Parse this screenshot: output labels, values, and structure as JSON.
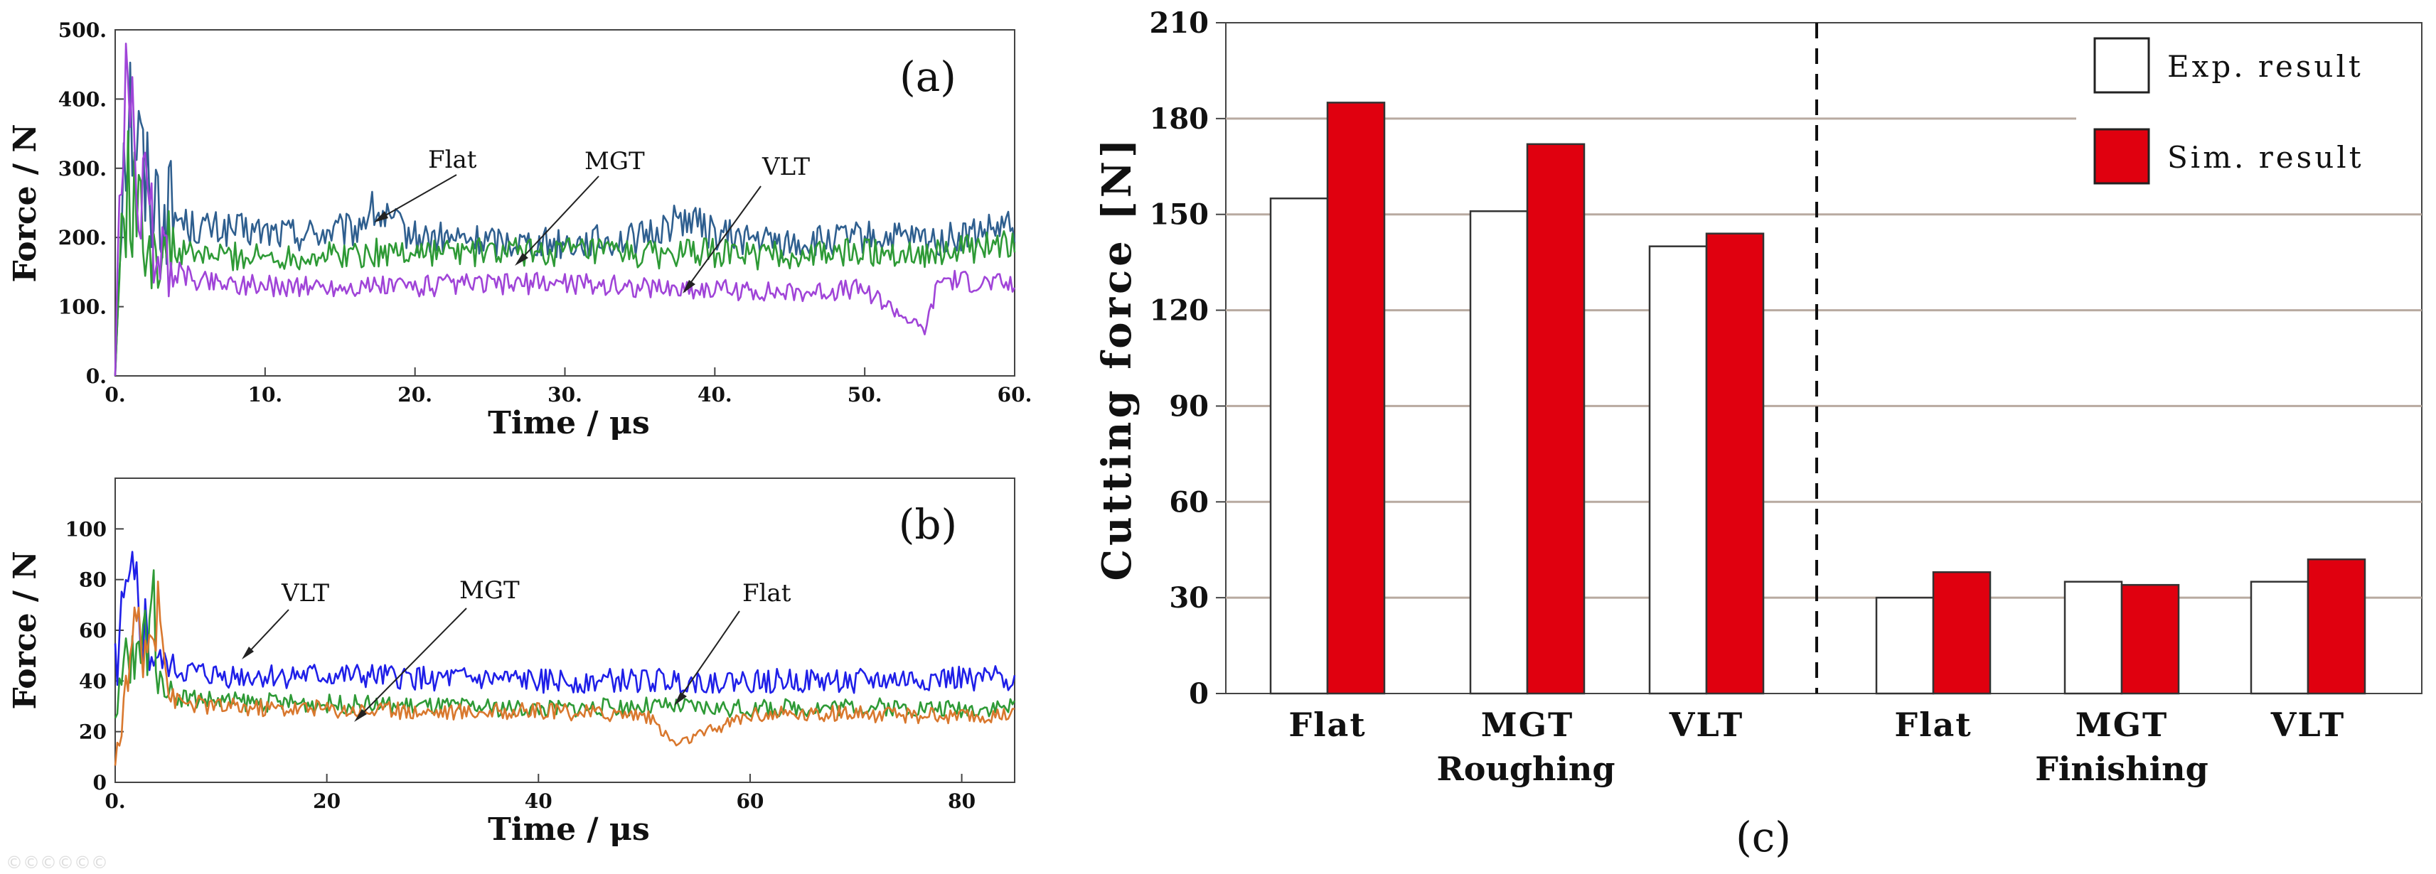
{
  "chart_data": [
    {
      "panel": "(a)",
      "type": "line",
      "xlabel": "Time / μs",
      "ylabel": "Force / N",
      "xlim": [
        0,
        60
      ],
      "ylim": [
        0,
        500
      ],
      "xticks": [
        "0.",
        "10.",
        "20.",
        "30.",
        "40.",
        "50.",
        "60."
      ],
      "yticks": [
        "0.",
        "100.",
        "200.",
        "300.",
        "400.",
        "500."
      ],
      "colors": {
        "Flat": "#2f5f8f",
        "MGT": "#2e9a36",
        "VLT": "#a044d8"
      },
      "annotations": [
        "Flat",
        "MGT",
        "VLT"
      ],
      "series": [
        {
          "name": "Flat",
          "color": "#2f5f8f",
          "x": [
            0,
            0.5,
            1,
            1.5,
            2,
            3,
            5,
            8,
            12,
            16,
            17,
            20,
            25,
            30,
            35,
            38,
            40,
            45,
            50,
            55,
            60
          ],
          "y": [
            0,
            330,
            390,
            340,
            280,
            250,
            215,
            210,
            205,
            210,
            240,
            200,
            195,
            192,
            198,
            230,
            205,
            190,
            200,
            195,
            215
          ]
        },
        {
          "name": "MGT",
          "color": "#2e9a36",
          "x": [
            0,
            0.5,
            1,
            1.5,
            2,
            3,
            5,
            10,
            15,
            20,
            25,
            30,
            35,
            40,
            45,
            50,
            55,
            60
          ],
          "y": [
            0,
            250,
            270,
            230,
            200,
            180,
            175,
            172,
            175,
            180,
            178,
            180,
            175,
            178,
            172,
            180,
            178,
            190
          ]
        },
        {
          "name": "VLT",
          "color": "#a044d8",
          "x": [
            0,
            0.5,
            1,
            1.5,
            2,
            3,
            5,
            10,
            15,
            20,
            25,
            30,
            35,
            40,
            45,
            50,
            54,
            55,
            60
          ],
          "y": [
            0,
            390,
            360,
            300,
            240,
            170,
            140,
            130,
            128,
            130,
            132,
            135,
            128,
            125,
            120,
            125,
            65,
            140,
            130
          ]
        }
      ]
    },
    {
      "panel": "(b)",
      "type": "line",
      "xlabel": "Time / μs",
      "ylabel": "Force / N",
      "xlim": [
        0,
        85
      ],
      "ylim": [
        0,
        120
      ],
      "xticks": [
        "0.",
        "20",
        "40",
        "60",
        "80"
      ],
      "yticks": [
        "0",
        "20",
        "40",
        "60",
        "80",
        "100"
      ],
      "colors": {
        "VLT": "#1f1fe8",
        "MGT": "#2e9a36",
        "Flat": "#d9782e"
      },
      "annotations": [
        "VLT",
        "MGT",
        "Flat"
      ],
      "series": [
        {
          "name": "VLT",
          "color": "#1f1fe8",
          "x": [
            0,
            1,
            2,
            3,
            4,
            6,
            10,
            20,
            30,
            40,
            50,
            60,
            70,
            80,
            85
          ],
          "y": [
            45,
            65,
            70,
            55,
            48,
            44,
            42,
            42,
            41,
            40,
            40,
            40,
            40,
            41,
            41
          ]
        },
        {
          "name": "MGT",
          "color": "#2e9a36",
          "x": [
            0,
            1,
            2,
            3,
            3.5,
            4,
            6,
            10,
            20,
            30,
            40,
            50,
            60,
            70,
            80,
            85
          ],
          "y": [
            20,
            50,
            45,
            60,
            82,
            40,
            34,
            32,
            31,
            30,
            29,
            30,
            29,
            30,
            29,
            30
          ]
        },
        {
          "name": "Flat",
          "color": "#d9782e",
          "x": [
            0,
            1,
            2,
            3,
            4,
            5,
            6,
            10,
            20,
            30,
            40,
            50,
            53,
            60,
            70,
            80,
            85
          ],
          "y": [
            5,
            40,
            55,
            50,
            84,
            35,
            32,
            30,
            29,
            28,
            28,
            27,
            15,
            27,
            27,
            26,
            26
          ]
        }
      ]
    },
    {
      "panel": "(c)",
      "type": "bar",
      "ylabel": "Cutting force [N]",
      "ylim": [
        0,
        210
      ],
      "yticks": [
        "0",
        "30",
        "60",
        "90",
        "120",
        "150",
        "180",
        "210"
      ],
      "categories": [
        "Flat",
        "MGT",
        "VLT",
        "Flat",
        "MGT",
        "VLT"
      ],
      "groups": [
        "Roughing",
        "Finishing"
      ],
      "legend_position": "top-right",
      "series": [
        {
          "name": "Exp. result",
          "color": "#ffffff",
          "values": [
            155,
            151,
            140,
            30,
            35,
            35
          ]
        },
        {
          "name": "Sim. result",
          "color": "#e0000f",
          "values": [
            185,
            172,
            144,
            38,
            34,
            42
          ]
        }
      ]
    }
  ],
  "watermark": "©©©©©©"
}
